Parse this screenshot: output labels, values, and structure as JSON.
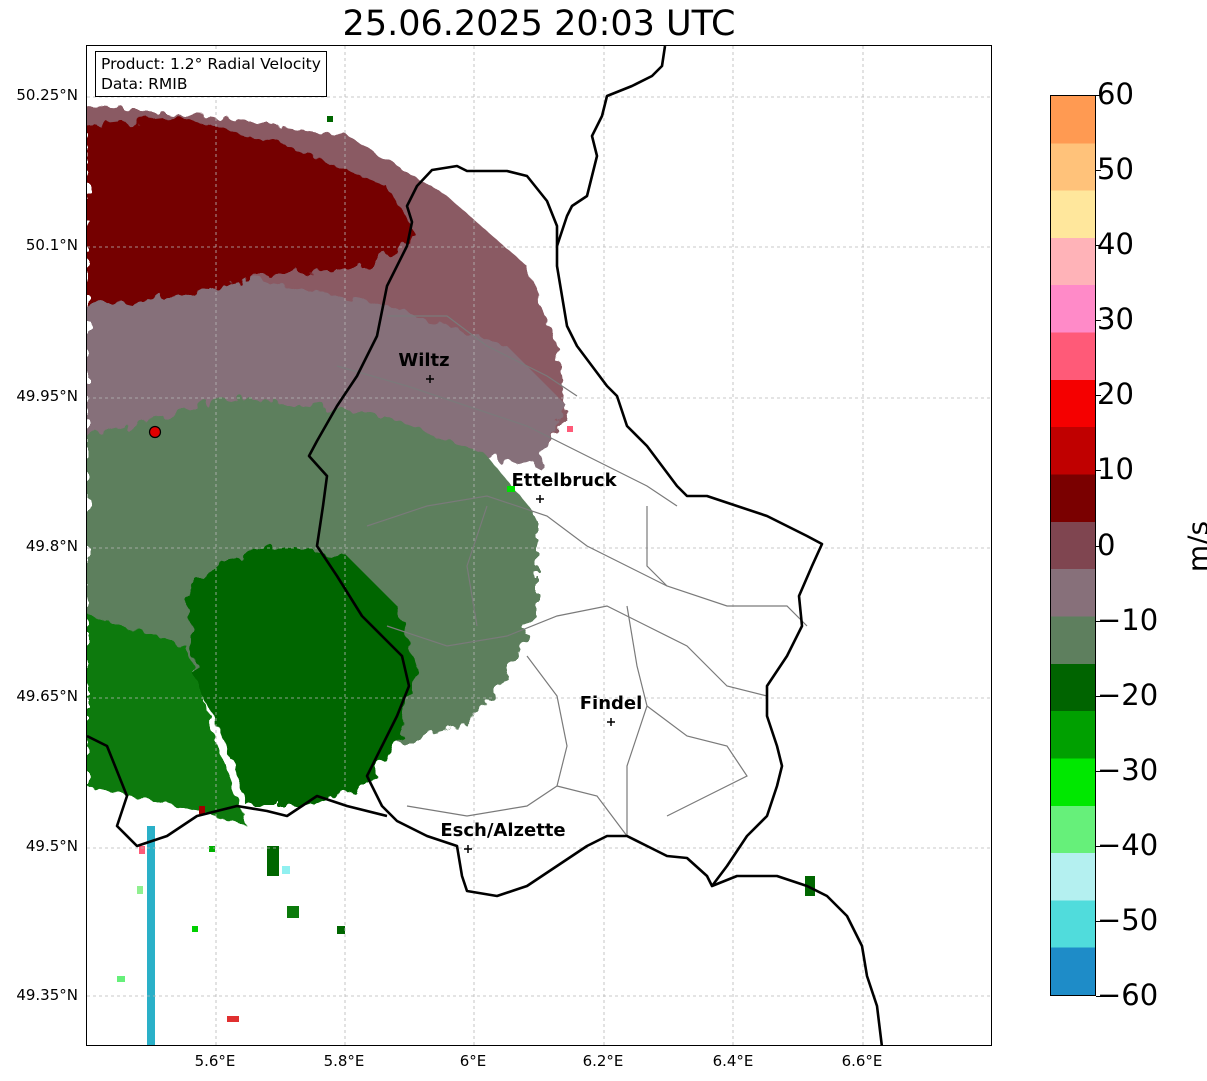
{
  "title": "25.06.2025 20:03 UTC",
  "info": {
    "product": "Product: 1.2° Radial Velocity",
    "data": "Data: RMIB"
  },
  "map": {
    "lon_range": [
      5.42,
      6.8
    ],
    "lat_range": [
      49.3,
      50.3
    ],
    "y_ticks": [
      "50.25°N",
      "50.1°N",
      "49.95°N",
      "49.8°N",
      "49.65°N",
      "49.5°N",
      "49.35°N"
    ],
    "x_ticks": [
      "5.6°E",
      "5.8°E",
      "6°E",
      "6.2°E",
      "6.4°E",
      "6.6°E"
    ],
    "grid": true,
    "radar_site": {
      "lon": 5.525,
      "lat": 49.915,
      "color": "#e00000"
    },
    "cities": [
      {
        "name": "Wiltz",
        "lon": 5.93,
        "lat": 49.966
      },
      {
        "name": "Ettelbruck",
        "lon": 6.104,
        "lat": 49.848
      },
      {
        "name": "Findel",
        "lon": 6.21,
        "lat": 49.627
      },
      {
        "name": "Esch/Alzette",
        "lon": 5.99,
        "lat": 49.498
      }
    ]
  },
  "colorbar": {
    "label": "m/s",
    "ticks": [
      "60",
      "50",
      "40",
      "30",
      "20",
      "10",
      "0",
      "−10",
      "−20",
      "−30",
      "−40",
      "−50",
      "−60"
    ],
    "range": [
      -60,
      60
    ],
    "colors_top_to_bottom": [
      "#ff9a52",
      "#ffc27a",
      "#ffe79c",
      "#ffb3b8",
      "#ff8ac8",
      "#ff5a78",
      "#f50000",
      "#c00000",
      "#7a0000",
      "#7f4550",
      "#87707a",
      "#5e7f5e",
      "#006400",
      "#00a000",
      "#00e800",
      "#66f07a",
      "#b4f0f0",
      "#50dcdc",
      "#1e8cc8"
    ]
  }
}
